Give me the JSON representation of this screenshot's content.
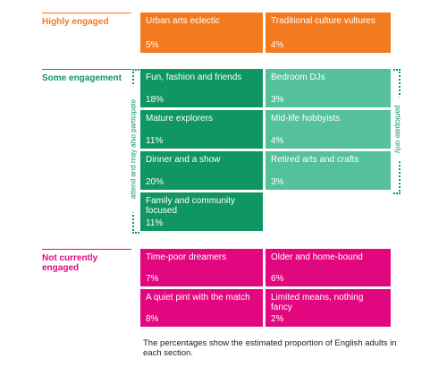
{
  "sections": {
    "highly": {
      "label": "Highly engaged"
    },
    "some": {
      "label": "Some engagement"
    },
    "not": {
      "label": "Not currently engaged"
    }
  },
  "segments": {
    "urban_arts": {
      "name": "Urban arts eclectic",
      "pct": "5%"
    },
    "traditional": {
      "name": "Traditional culture vultures",
      "pct": "4%"
    },
    "fun_fashion": {
      "name": "Fun, fashion and friends",
      "pct": "18%"
    },
    "bedroom_djs": {
      "name": "Bedroom DJs",
      "pct": "3%"
    },
    "mature_explorers": {
      "name": "Mature explorers",
      "pct": "11%"
    },
    "midlife_hobbyists": {
      "name": "Mid-life hobbyists",
      "pct": "4%"
    },
    "dinner_show": {
      "name": "Dinner and a show",
      "pct": "20%"
    },
    "retired_arts": {
      "name": "Retired arts and crafts",
      "pct": "3%"
    },
    "family_community": {
      "name": "Family and community focused",
      "pct": "11%"
    },
    "time_poor": {
      "name": "Time-poor dreamers",
      "pct": "7%"
    },
    "older_homebound": {
      "name": "Older and home-bound",
      "pct": "6%"
    },
    "quiet_pint": {
      "name": "A quiet pint with the match",
      "pct": "8%"
    },
    "limited_means": {
      "name": "Limited means, nothing fancy",
      "pct": "2%"
    }
  },
  "brackets": {
    "left_label": "attend and may also participate",
    "right_label": "participate only"
  },
  "caption": "The percentages show the estimated proportion of English adults in each section.",
  "colors": {
    "highly_engaged": "#f47a20",
    "attend_participate": "#0f9663",
    "participate_only": "#55c19b",
    "not_engaged": "#e3077f"
  }
}
